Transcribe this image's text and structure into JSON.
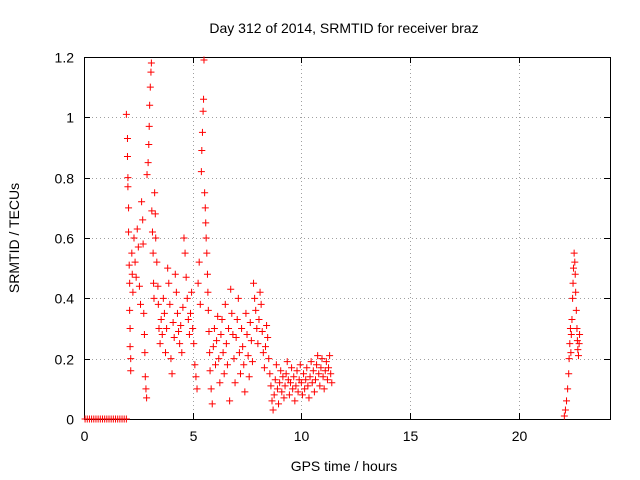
{
  "chart_data": {
    "type": "scatter",
    "title": "Day 312 of 2014, SRMTID for receiver braz",
    "xlabel": "GPS time / hours",
    "ylabel": "SRMTID / TECUs",
    "xlim": [
      0,
      24.2
    ],
    "ylim": [
      0,
      1.2
    ],
    "x_ticks": [
      0,
      5,
      10,
      15,
      20
    ],
    "x_tick_labels": [
      "0",
      "5",
      "10",
      "15",
      "20"
    ],
    "y_ticks": [
      0,
      0.2,
      0.4,
      0.6,
      0.8,
      1.0,
      1.2
    ],
    "y_tick_labels": [
      "0",
      "0.2",
      "0.4",
      "0.6",
      "0.8",
      "1",
      "1.2"
    ],
    "grid": true,
    "marker": "+",
    "color": "#ff0000",
    "series": [
      {
        "name": "SRMTID",
        "points": [
          [
            0.05,
            0
          ],
          [
            0.15,
            0
          ],
          [
            0.25,
            0
          ],
          [
            0.35,
            0
          ],
          [
            0.45,
            0
          ],
          [
            0.55,
            0
          ],
          [
            0.65,
            0
          ],
          [
            0.75,
            0
          ],
          [
            0.85,
            0
          ],
          [
            0.95,
            0
          ],
          [
            1.05,
            0
          ],
          [
            1.15,
            0
          ],
          [
            1.25,
            0
          ],
          [
            1.35,
            0
          ],
          [
            1.45,
            0
          ],
          [
            1.55,
            0
          ],
          [
            1.65,
            0
          ],
          [
            1.75,
            0
          ],
          [
            1.85,
            0
          ],
          [
            1.95,
            0
          ],
          [
            1.95,
            1.01
          ],
          [
            2.0,
            0.93
          ],
          [
            2.0,
            0.87
          ],
          [
            2.02,
            0.8
          ],
          [
            2.02,
            0.77
          ],
          [
            2.05,
            0.7
          ],
          [
            2.05,
            0.62
          ],
          [
            2.08,
            0.51
          ],
          [
            2.1,
            0.45
          ],
          [
            2.1,
            0.36
          ],
          [
            2.12,
            0.3
          ],
          [
            2.12,
            0.24
          ],
          [
            2.15,
            0.2
          ],
          [
            2.15,
            0.16
          ],
          [
            2.2,
            0.55
          ],
          [
            2.22,
            0.48
          ],
          [
            2.25,
            0.42
          ],
          [
            2.3,
            0.6
          ],
          [
            2.35,
            0.52
          ],
          [
            2.4,
            0.47
          ],
          [
            2.45,
            0.63
          ],
          [
            2.5,
            0.57
          ],
          [
            2.55,
            0.44
          ],
          [
            2.6,
            0.38
          ],
          [
            2.65,
            0.72
          ],
          [
            2.7,
            0.66
          ],
          [
            2.72,
            0.58
          ],
          [
            2.75,
            0.35
          ],
          [
            2.78,
            0.28
          ],
          [
            2.8,
            0.22
          ],
          [
            2.82,
            0.14
          ],
          [
            2.85,
            0.1
          ],
          [
            2.88,
            0.07
          ],
          [
            2.9,
            0.81
          ],
          [
            2.95,
            0.85
          ],
          [
            2.98,
            0.91
          ],
          [
            3.0,
            0.97
          ],
          [
            3.02,
            1.04
          ],
          [
            3.05,
            1.1
          ],
          [
            3.08,
            1.15
          ],
          [
            3.1,
            1.18
          ],
          [
            3.12,
            0.69
          ],
          [
            3.15,
            0.62
          ],
          [
            3.18,
            0.55
          ],
          [
            3.2,
            0.45
          ],
          [
            3.22,
            0.4
          ],
          [
            3.25,
            0.75
          ],
          [
            3.28,
            0.68
          ],
          [
            3.3,
            0.6
          ],
          [
            3.35,
            0.52
          ],
          [
            3.4,
            0.44
          ],
          [
            3.42,
            0.38
          ],
          [
            3.45,
            0.3
          ],
          [
            3.5,
            0.25
          ],
          [
            3.55,
            0.33
          ],
          [
            3.6,
            0.28
          ],
          [
            3.65,
            0.4
          ],
          [
            3.7,
            0.35
          ],
          [
            3.75,
            0.22
          ],
          [
            3.8,
            0.3
          ],
          [
            3.85,
            0.5
          ],
          [
            3.9,
            0.45
          ],
          [
            3.95,
            0.38
          ],
          [
            4.0,
            0.2
          ],
          [
            4.05,
            0.15
          ],
          [
            4.1,
            0.32
          ],
          [
            4.15,
            0.27
          ],
          [
            4.2,
            0.48
          ],
          [
            4.25,
            0.42
          ],
          [
            4.3,
            0.35
          ],
          [
            4.35,
            0.29
          ],
          [
            4.4,
            0.25
          ],
          [
            4.45,
            0.31
          ],
          [
            4.5,
            0.22
          ],
          [
            4.55,
            0.37
          ],
          [
            4.6,
            0.6
          ],
          [
            4.65,
            0.55
          ],
          [
            4.7,
            0.47
          ],
          [
            4.75,
            0.4
          ],
          [
            4.8,
            0.33
          ],
          [
            4.85,
            0.28
          ],
          [
            4.9,
            0.35
          ],
          [
            4.95,
            0.42
          ],
          [
            5.0,
            0.3
          ],
          [
            5.05,
            0.25
          ],
          [
            5.1,
            0.18
          ],
          [
            5.15,
            0.14
          ],
          [
            5.2,
            0.1
          ],
          [
            5.25,
            0.45
          ],
          [
            5.3,
            0.52
          ],
          [
            5.35,
            0.38
          ],
          [
            5.4,
            0.82
          ],
          [
            5.42,
            0.89
          ],
          [
            5.45,
            0.95
          ],
          [
            5.48,
            1.02
          ],
          [
            5.5,
            1.06
          ],
          [
            5.52,
            1.19
          ],
          [
            5.55,
            0.75
          ],
          [
            5.58,
            0.7
          ],
          [
            5.6,
            0.65
          ],
          [
            5.62,
            0.6
          ],
          [
            5.65,
            0.55
          ],
          [
            5.68,
            0.48
          ],
          [
            5.7,
            0.42
          ],
          [
            5.72,
            0.36
          ],
          [
            5.75,
            0.29
          ],
          [
            5.78,
            0.22
          ],
          [
            5.8,
            0.16
          ],
          [
            5.85,
            0.1
          ],
          [
            5.9,
            0.05
          ],
          [
            5.95,
            0.24
          ],
          [
            6.0,
            0.3
          ],
          [
            6.05,
            0.18
          ],
          [
            6.1,
            0.26
          ],
          [
            6.15,
            0.34
          ],
          [
            6.2,
            0.2
          ],
          [
            6.25,
            0.12
          ],
          [
            6.3,
            0.28
          ],
          [
            6.35,
            0.33
          ],
          [
            6.4,
            0.22
          ],
          [
            6.45,
            0.15
          ],
          [
            6.5,
            0.38
          ],
          [
            6.55,
            0.25
          ],
          [
            6.6,
            0.18
          ],
          [
            6.65,
            0.3
          ],
          [
            6.7,
            0.06
          ],
          [
            6.75,
            0.43
          ],
          [
            6.8,
            0.35
          ],
          [
            6.85,
            0.28
          ],
          [
            6.9,
            0.2
          ],
          [
            6.95,
            0.12
          ],
          [
            7.0,
            0.27
          ],
          [
            7.05,
            0.33
          ],
          [
            7.1,
            0.4
          ],
          [
            7.15,
            0.22
          ],
          [
            7.2,
            0.15
          ],
          [
            7.25,
            0.3
          ],
          [
            7.3,
            0.24
          ],
          [
            7.35,
            0.18
          ],
          [
            7.4,
            0.09
          ],
          [
            7.45,
            0.35
          ],
          [
            7.5,
            0.28
          ],
          [
            7.55,
            0.21
          ],
          [
            7.6,
            0.14
          ],
          [
            7.65,
            0.32
          ],
          [
            7.7,
            0.26
          ],
          [
            7.75,
            0.19
          ],
          [
            7.8,
            0.45
          ],
          [
            7.85,
            0.4
          ],
          [
            7.9,
            0.36
          ],
          [
            7.95,
            0.3
          ],
          [
            8.0,
            0.25
          ],
          [
            8.05,
            0.33
          ],
          [
            8.1,
            0.42
          ],
          [
            8.15,
            0.38
          ],
          [
            8.2,
            0.29
          ],
          [
            8.25,
            0.22
          ],
          [
            8.3,
            0.17
          ],
          [
            8.35,
            0.24
          ],
          [
            8.4,
            0.31
          ],
          [
            8.45,
            0.27
          ],
          [
            8.5,
            0.2
          ],
          [
            8.55,
            0.15
          ],
          [
            8.6,
            0.11
          ],
          [
            8.65,
            0.06
          ],
          [
            8.7,
            0.03
          ],
          [
            8.75,
            0.08
          ],
          [
            8.8,
            0.13
          ],
          [
            8.85,
            0.18
          ],
          [
            8.9,
            0.1
          ],
          [
            8.95,
            0.05
          ],
          [
            9.0,
            0.12
          ],
          [
            9.05,
            0.16
          ],
          [
            9.1,
            0.09
          ],
          [
            9.15,
            0.14
          ],
          [
            9.2,
            0.07
          ],
          [
            9.25,
            0.11
          ],
          [
            9.3,
            0.15
          ],
          [
            9.35,
            0.19
          ],
          [
            9.4,
            0.13
          ],
          [
            9.45,
            0.08
          ],
          [
            9.5,
            0.12
          ],
          [
            9.55,
            0.17
          ],
          [
            9.6,
            0.1
          ],
          [
            9.65,
            0.14
          ],
          [
            9.7,
            0.06
          ],
          [
            9.75,
            0.11
          ],
          [
            9.8,
            0.16
          ],
          [
            9.85,
            0.09
          ],
          [
            9.9,
            0.13
          ],
          [
            9.95,
            0.18
          ],
          [
            10.0,
            0.12
          ],
          [
            10.05,
            0.08
          ],
          [
            10.1,
            0.15
          ],
          [
            10.15,
            0.1
          ],
          [
            10.2,
            0.13
          ],
          [
            10.25,
            0.17
          ],
          [
            10.3,
            0.11
          ],
          [
            10.35,
            0.07
          ],
          [
            10.4,
            0.14
          ],
          [
            10.45,
            0.19
          ],
          [
            10.5,
            0.12
          ],
          [
            10.55,
            0.16
          ],
          [
            10.6,
            0.09
          ],
          [
            10.65,
            0.13
          ],
          [
            10.7,
            0.18
          ],
          [
            10.75,
            0.21
          ],
          [
            10.8,
            0.15
          ],
          [
            10.85,
            0.11
          ],
          [
            10.9,
            0.17
          ],
          [
            10.95,
            0.2
          ],
          [
            11.0,
            0.14
          ],
          [
            11.05,
            0.1
          ],
          [
            11.1,
            0.16
          ],
          [
            11.15,
            0.19
          ],
          [
            11.2,
            0.13
          ],
          [
            11.25,
            0.17
          ],
          [
            11.3,
            0.21
          ],
          [
            11.35,
            0.15
          ],
          [
            11.4,
            0.12
          ],
          [
            22.1,
            0.01
          ],
          [
            22.15,
            0.03
          ],
          [
            22.2,
            0.06
          ],
          [
            22.25,
            0.1
          ],
          [
            22.3,
            0.15
          ],
          [
            22.32,
            0.2
          ],
          [
            22.35,
            0.25
          ],
          [
            22.38,
            0.3
          ],
          [
            22.4,
            0.22
          ],
          [
            22.42,
            0.28
          ],
          [
            22.45,
            0.33
          ],
          [
            22.48,
            0.4
          ],
          [
            22.5,
            0.45
          ],
          [
            22.52,
            0.5
          ],
          [
            22.55,
            0.55
          ],
          [
            22.58,
            0.52
          ],
          [
            22.6,
            0.48
          ],
          [
            22.62,
            0.42
          ],
          [
            22.65,
            0.36
          ],
          [
            22.68,
            0.3
          ],
          [
            22.7,
            0.26
          ],
          [
            22.72,
            0.23
          ],
          [
            22.75,
            0.21
          ],
          [
            22.78,
            0.25
          ],
          [
            22.8,
            0.28
          ]
        ]
      }
    ]
  }
}
